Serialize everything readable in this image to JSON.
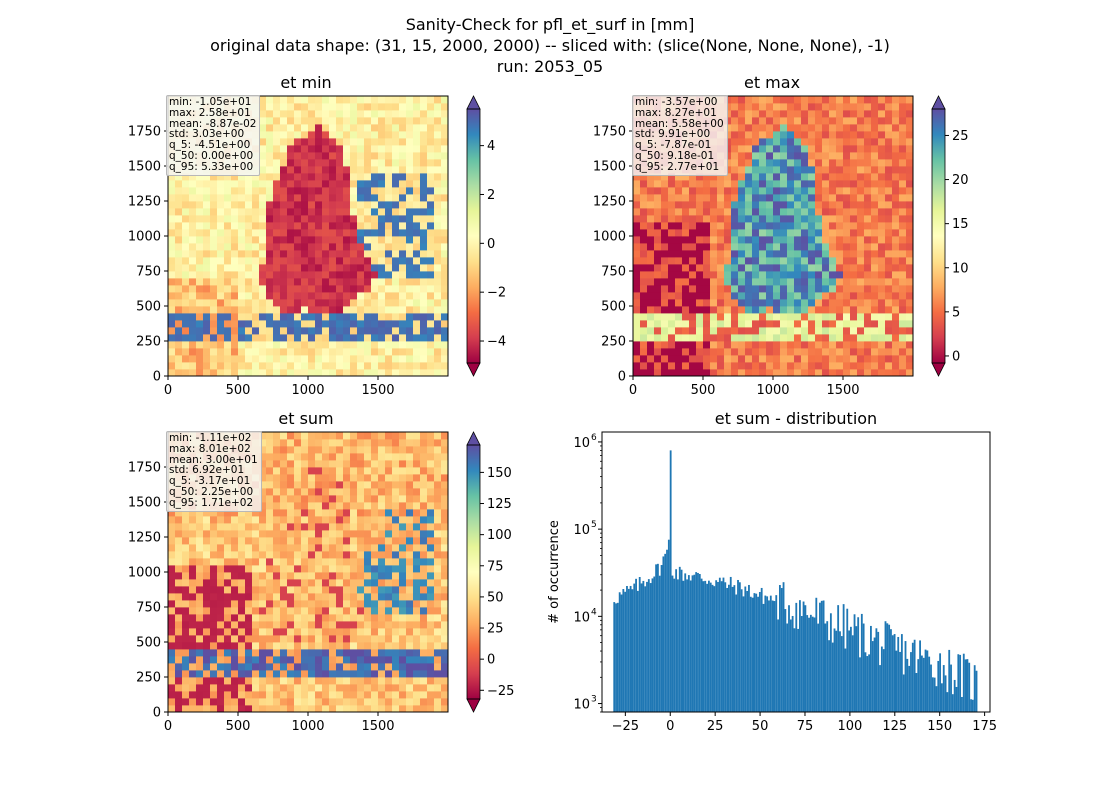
{
  "title": {
    "line1": "Sanity-Check for pfl_et_surf in [mm]",
    "line2": "original data shape: (31, 15, 2000, 2000) -- sliced with: (slice(None, None, None), -1)",
    "line3": "run: 2053_05"
  },
  "colors": {
    "spectral": [
      "#9e0142",
      "#d53e4f",
      "#f46d43",
      "#fdae61",
      "#fee08b",
      "#ffffbf",
      "#e6f598",
      "#abdda4",
      "#66c2a5",
      "#3288bd",
      "#5e4fa2"
    ],
    "hist_bar": "#1f77b4",
    "axis": "#000000"
  },
  "chart_data": [
    {
      "type": "heatmap",
      "title": "et min",
      "xlim": [
        0,
        2000
      ],
      "ylim": [
        0,
        2000
      ],
      "xticks": [
        0,
        500,
        1000,
        1500
      ],
      "yticks": [
        0,
        250,
        500,
        750,
        1000,
        1250,
        1500,
        1750
      ],
      "colorbar": {
        "vmin": -4.9,
        "vmax": 5.5,
        "ticks": [
          -4,
          -2,
          0,
          2,
          4
        ],
        "extend": "both",
        "cmap": "Spectral"
      },
      "stats": [
        "min: -1.05e+01",
        "max: 2.58e+01",
        "mean: -8.87e-02",
        "std: 3.03e+00",
        "q_5: -4.51e+00",
        "q_50: 0.00e+00",
        "q_95: 5.33e+00"
      ]
    },
    {
      "type": "heatmap",
      "title": "et max",
      "xlim": [
        0,
        2000
      ],
      "ylim": [
        0,
        2000
      ],
      "xticks": [
        0,
        500,
        1000,
        1500
      ],
      "yticks": [
        0,
        250,
        500,
        750,
        1000,
        1250,
        1500,
        1750
      ],
      "colorbar": {
        "vmin": -0.8,
        "vmax": 28,
        "ticks": [
          0,
          5,
          10,
          15,
          20,
          25
        ],
        "extend": "both",
        "cmap": "Spectral"
      },
      "stats": [
        "min: -3.57e+00",
        "max: 8.27e+01",
        "mean: 5.58e+00",
        "std: 9.91e+00",
        "q_5: -7.87e-01",
        "q_50: 9.18e-01",
        "q_95: 2.77e+01"
      ]
    },
    {
      "type": "heatmap",
      "title": "et sum",
      "xlim": [
        0,
        2000
      ],
      "ylim": [
        0,
        2000
      ],
      "xticks": [
        0,
        500,
        1000,
        1500
      ],
      "yticks": [
        0,
        250,
        500,
        750,
        1000,
        1250,
        1500,
        1750
      ],
      "colorbar": {
        "vmin": -32,
        "vmax": 172,
        "ticks": [
          -25,
          0,
          25,
          50,
          75,
          100,
          125,
          150
        ],
        "extend": "both",
        "cmap": "Spectral"
      },
      "stats": [
        "min: -1.11e+02",
        "max: 8.01e+02",
        "mean: 3.00e+01",
        "std: 6.92e+01",
        "q_5: -3.17e+01",
        "q_50: 2.25e+00",
        "q_95: 1.71e+02"
      ]
    },
    {
      "type": "bar",
      "title": "et sum - distribution",
      "ylabel": "# of occurrence",
      "yscale": "log",
      "xlim": [
        -38,
        178
      ],
      "ylim": [
        800,
        1300000
      ],
      "xticks": [
        -25,
        0,
        25,
        50,
        75,
        100,
        125,
        150,
        175
      ],
      "yticks": [
        {
          "value": 1000,
          "label": "10",
          "exp": "3"
        },
        {
          "value": 10000,
          "label": "10",
          "exp": "4"
        },
        {
          "value": 100000,
          "label": "10",
          "exp": "5"
        },
        {
          "value": 1000000,
          "label": "10",
          "exp": "6"
        }
      ],
      "bin_range": [
        -31.7,
        171
      ],
      "bin_count": 200,
      "profile": [
        [
          -31.7,
          16000
        ],
        [
          -25,
          18500
        ],
        [
          -20,
          21000
        ],
        [
          -15,
          25000
        ],
        [
          -10,
          30000
        ],
        [
          -5,
          38000
        ],
        [
          -2,
          55000
        ],
        [
          -1,
          42000
        ],
        [
          0,
          800000
        ],
        [
          1,
          34000
        ],
        [
          5,
          31000
        ],
        [
          10,
          30000
        ],
        [
          20,
          27000
        ],
        [
          30,
          24000
        ],
        [
          40,
          21000
        ],
        [
          50,
          17500
        ],
        [
          60,
          15000
        ],
        [
          75,
          11500
        ],
        [
          100,
          7000
        ],
        [
          125,
          4200
        ],
        [
          150,
          2800
        ],
        [
          171,
          1700
        ]
      ]
    }
  ]
}
